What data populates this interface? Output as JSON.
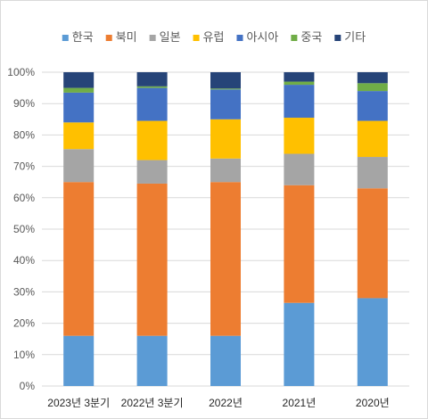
{
  "chart_data": {
    "type": "bar",
    "stacked": true,
    "percent": true,
    "categories": [
      "2023년 3분기",
      "2022년 3분기",
      "2022년",
      "2021년",
      "2020년"
    ],
    "series": [
      {
        "name": "한국",
        "color": "#5b9bd5",
        "values": [
          16,
          16,
          16,
          26.5,
          28
        ]
      },
      {
        "name": "북미",
        "color": "#ed7d31",
        "values": [
          49,
          48.5,
          49,
          37.5,
          35
        ]
      },
      {
        "name": "일본",
        "color": "#a5a5a5",
        "values": [
          10.5,
          7.5,
          7.5,
          10,
          10
        ]
      },
      {
        "name": "유럽",
        "color": "#ffc000",
        "values": [
          8.5,
          12.5,
          12.5,
          11.5,
          11.5
        ]
      },
      {
        "name": "아시아",
        "color": "#4472c4",
        "values": [
          9.5,
          10.5,
          9.5,
          10.5,
          9.5
        ]
      },
      {
        "name": "중국",
        "color": "#70ad47",
        "values": [
          1.5,
          0.5,
          0.3,
          1,
          2.5
        ]
      },
      {
        "name": "기타",
        "color": "#264478",
        "values": [
          5,
          4.5,
          5.2,
          3,
          3.5
        ]
      }
    ],
    "y_ticks": [
      "0%",
      "10%",
      "20%",
      "30%",
      "40%",
      "50%",
      "60%",
      "70%",
      "80%",
      "90%",
      "100%"
    ],
    "ylim": [
      0,
      100
    ],
    "grid": true,
    "legend_position": "top"
  }
}
